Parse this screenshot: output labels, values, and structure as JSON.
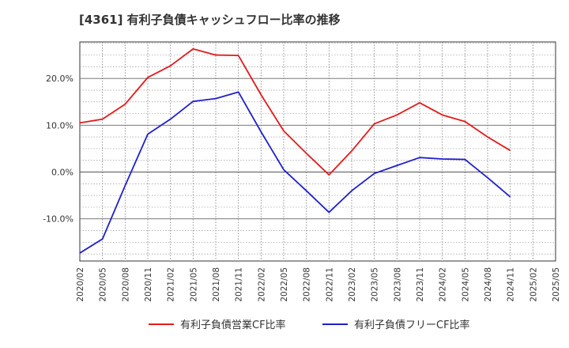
{
  "chart_data": {
    "type": "line",
    "title": "[4361]  有利子負債キャッシュフロー比率の推移",
    "x": [
      "2020/02",
      "2020/05",
      "2020/08",
      "2020/11",
      "2021/02",
      "2021/05",
      "2021/08",
      "2021/11",
      "2022/02",
      "2022/05",
      "2022/08",
      "2022/11",
      "2023/02",
      "2023/05",
      "2023/08",
      "2023/11",
      "2024/02",
      "2024/05",
      "2024/08",
      "2024/11",
      "2025/02",
      "2025/05"
    ],
    "series": [
      {
        "name": "有利子負債営業CF比率",
        "color": "#e41a1c",
        "values": [
          10.5,
          11.3,
          14.5,
          20.2,
          22.7,
          26.3,
          25.0,
          24.9,
          16.5,
          8.8,
          4.0,
          -0.6,
          4.5,
          10.3,
          12.2,
          14.8,
          12.2,
          10.8,
          7.5,
          4.6,
          null,
          null
        ]
      },
      {
        "name": "有利子負債フリーCF比率",
        "color": "#1f1fcc",
        "values": [
          -17.3,
          -14.3,
          -2.9,
          8.1,
          11.3,
          15.1,
          15.7,
          17.1,
          8.6,
          0.5,
          -4.0,
          -8.6,
          -4.0,
          -0.3,
          1.4,
          3.1,
          2.8,
          2.7,
          -1.2,
          -5.3,
          null,
          null
        ]
      }
    ],
    "y_ticks": [
      -10,
      0,
      10,
      20
    ],
    "y_tick_labels": [
      "-10.0%",
      "0.0%",
      "10.0%",
      "20.0%"
    ],
    "ylim": [
      -19,
      27.8
    ],
    "grid": true,
    "legend_position": "bottom"
  }
}
